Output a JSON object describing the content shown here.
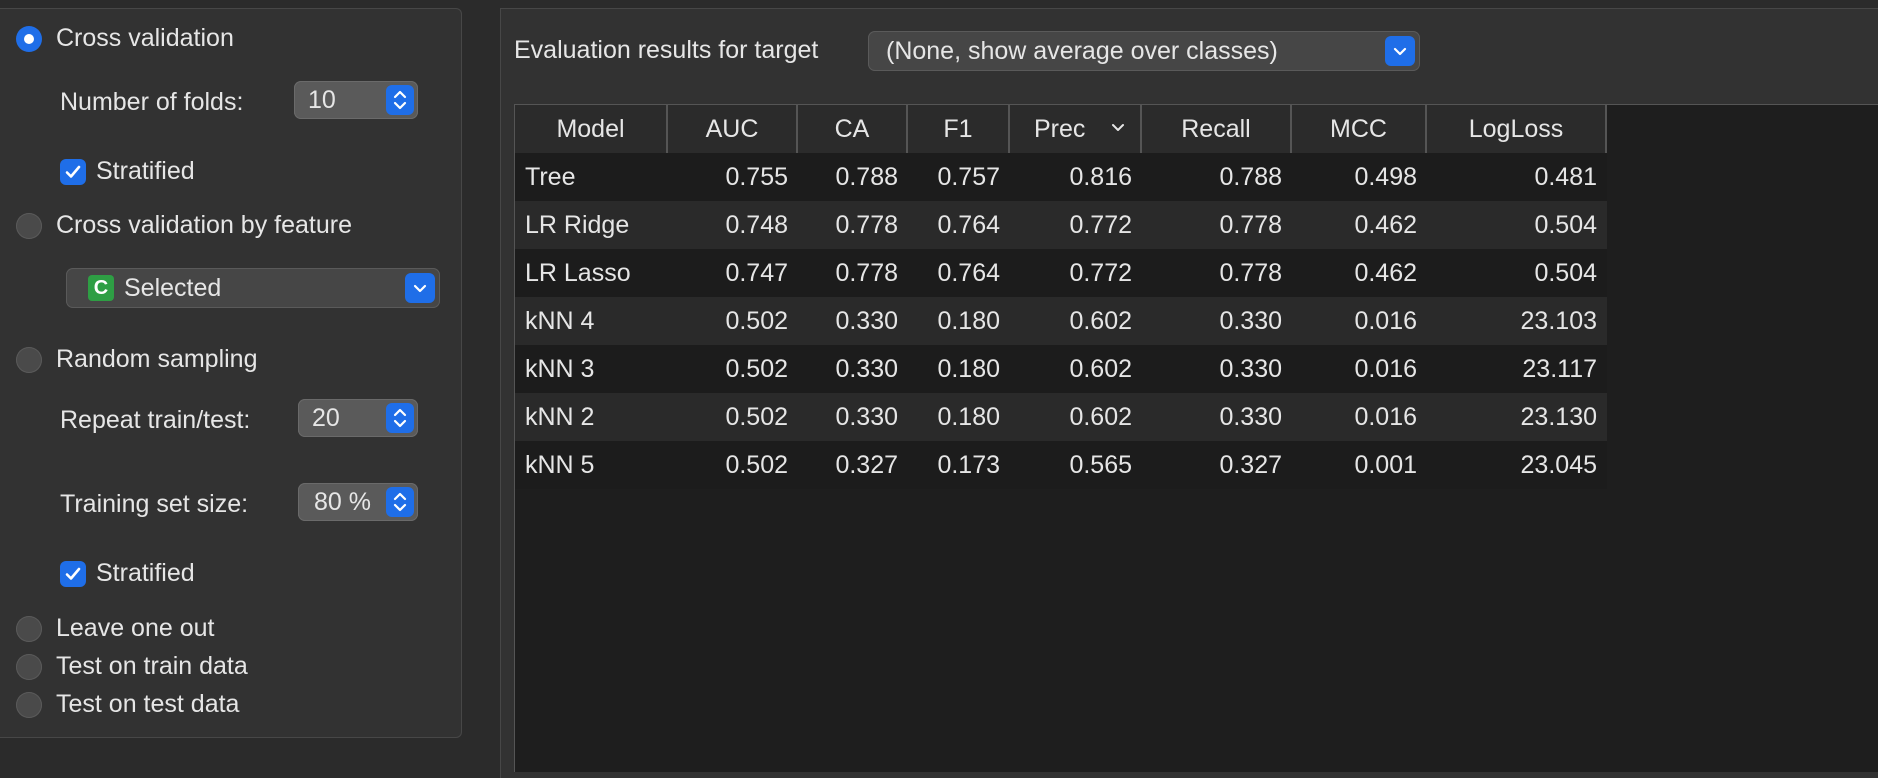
{
  "sampling": {
    "cross_validation": {
      "label": "Cross validation",
      "checked": true
    },
    "folds": {
      "label": "Number of folds:",
      "value": "10"
    },
    "stratified_cv": {
      "label": "Stratified",
      "checked": true
    },
    "cv_by_feature": {
      "label": "Cross validation by feature",
      "checked": false
    },
    "feature_select": {
      "badge": "C",
      "value": "Selected"
    },
    "random_sampling": {
      "label": "Random sampling",
      "checked": false
    },
    "repeat": {
      "label": "Repeat train/test:",
      "value": "20"
    },
    "train_size": {
      "label": "Training set size:",
      "value": "80 %"
    },
    "stratified_rs": {
      "label": "Stratified",
      "checked": true
    },
    "leave_one_out": {
      "label": "Leave one out",
      "checked": false
    },
    "test_on_train": {
      "label": "Test on train data",
      "checked": false
    },
    "test_on_test": {
      "label": "Test on test data",
      "checked": false
    }
  },
  "results": {
    "target_label": "Evaluation results for target",
    "target_value": "(None, show average over classes)",
    "columns": [
      "Model",
      "AUC",
      "CA",
      "F1",
      "Prec",
      "Recall",
      "MCC",
      "LogLoss"
    ],
    "sorted_column": "Prec",
    "rows": [
      [
        "Tree",
        "0.755",
        "0.788",
        "0.757",
        "0.816",
        "0.788",
        "0.498",
        "0.481"
      ],
      [
        "LR Ridge",
        "0.748",
        "0.778",
        "0.764",
        "0.772",
        "0.778",
        "0.462",
        "0.504"
      ],
      [
        "LR Lasso",
        "0.747",
        "0.778",
        "0.764",
        "0.772",
        "0.778",
        "0.462",
        "0.504"
      ],
      [
        "kNN 4",
        "0.502",
        "0.330",
        "0.180",
        "0.602",
        "0.330",
        "0.016",
        "23.103"
      ],
      [
        "kNN 3",
        "0.502",
        "0.330",
        "0.180",
        "0.602",
        "0.330",
        "0.016",
        "23.117"
      ],
      [
        "kNN 2",
        "0.502",
        "0.330",
        "0.180",
        "0.602",
        "0.330",
        "0.016",
        "23.130"
      ],
      [
        "kNN 5",
        "0.502",
        "0.327",
        "0.173",
        "0.565",
        "0.327",
        "0.001",
        "23.045"
      ]
    ]
  },
  "icons": {
    "stepper": "up-down-chevron-icon",
    "dropdown": "chevron-down-icon",
    "checkmark": "checkmark-icon",
    "sort": "sort-descending-icon"
  },
  "colors": {
    "accent": "#1f6ee8",
    "badge": "#2e9e44"
  }
}
